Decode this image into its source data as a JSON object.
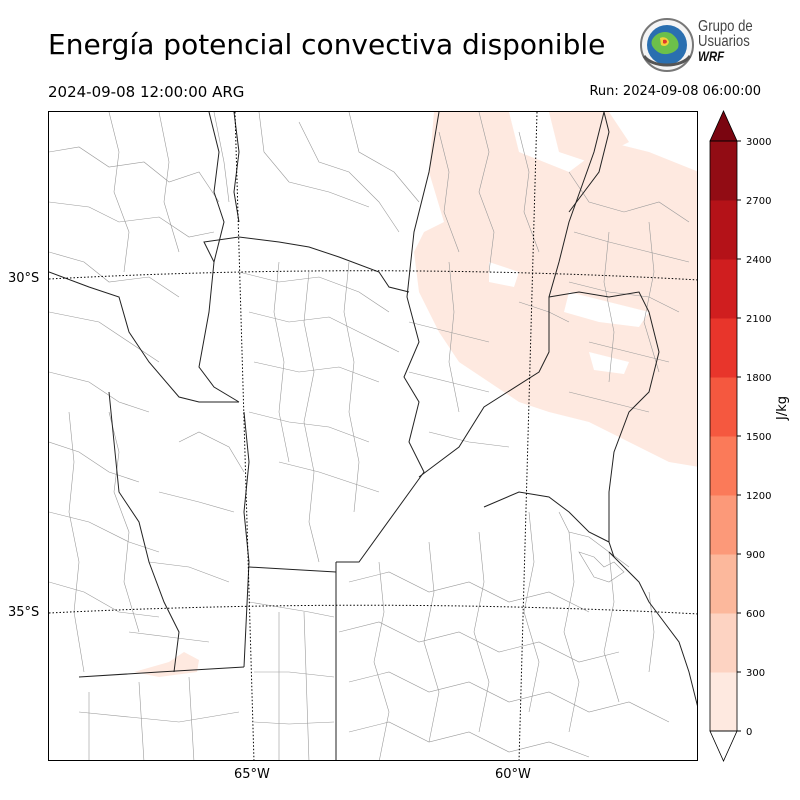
{
  "title": "Energía potencial convectiva disponible",
  "valid_time": "2024-09-08 12:00:00 ARG",
  "run_time": "Run: 2024-09-08 06:00:00",
  "logo": {
    "line1": "Grupo de",
    "line2": "Usuarios",
    "line3": "WRF"
  },
  "map": {
    "lat_labels": [
      "30°S",
      "35°S"
    ],
    "lon_labels": [
      "65°W",
      "60°W"
    ]
  },
  "colorbar": {
    "unit": "J/kg",
    "ticks": [
      "0",
      "300",
      "600",
      "900",
      "1200",
      "1500",
      "1800",
      "2100",
      "2400",
      "2700",
      "3000"
    ],
    "colors": [
      "#fee9e0",
      "#fdd3c2",
      "#fcb89c",
      "#fc9979",
      "#fb7a59",
      "#f5583f",
      "#e8352b",
      "#d01e1f",
      "#b41218",
      "#920c14",
      "#7a0510"
    ],
    "extend": "both"
  }
}
